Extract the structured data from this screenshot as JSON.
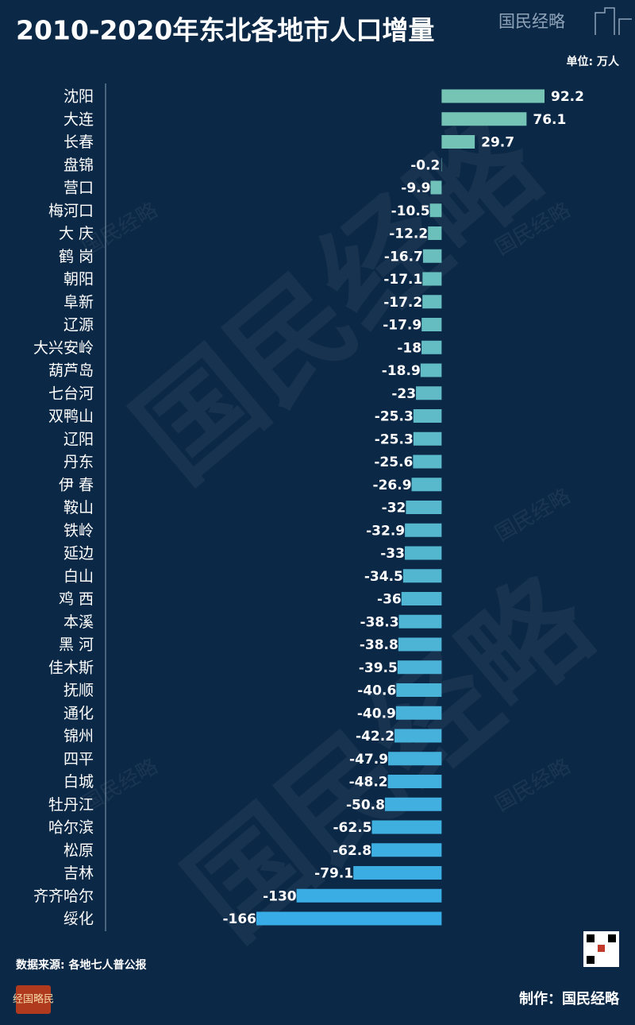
{
  "chart_data": {
    "type": "hbar",
    "title": "2010-2020年东北各地市人口增量",
    "unit": "单位: 万人",
    "source": "数据来源: 各地七人普公报",
    "credit": "制作：国民经略",
    "logo": "国民经略",
    "badge": "经国略民",
    "colors": [
      "#76c4b4",
      "#38ace6"
    ],
    "categories": [
      "沈阳",
      "大连",
      "长春",
      "盘锦",
      "营口",
      "梅河口",
      "大 庆",
      "鹤 岗",
      "朝阳",
      "阜新",
      "辽源",
      "大兴安岭",
      "葫芦岛",
      "七台河",
      "双鸭山",
      "辽阳",
      "丹东",
      "伊 春",
      "鞍山",
      "铁岭",
      "延边",
      "白山",
      "鸡 西",
      "本溪",
      "黑 河",
      "佳木斯",
      "抚顺",
      "通化",
      "锦州",
      "四平",
      "白城",
      "牡丹江",
      "哈尔滨",
      "松原",
      "吉林",
      "齐齐哈尔",
      "绥化"
    ],
    "values": [
      92.2,
      76.1,
      29.7,
      -0.2,
      -9.9,
      -10.5,
      -12.2,
      -16.7,
      -17.1,
      -17.2,
      -17.9,
      -18,
      -18.9,
      -23,
      -25.3,
      -25.3,
      -25.6,
      -26.9,
      -32,
      -32.9,
      -33,
      -34.5,
      -36,
      -38.3,
      -38.8,
      -39.5,
      -40.6,
      -40.9,
      -42.2,
      -47.9,
      -48.2,
      -50.8,
      -62.5,
      -62.8,
      -79.1,
      -130,
      -166
    ]
  }
}
